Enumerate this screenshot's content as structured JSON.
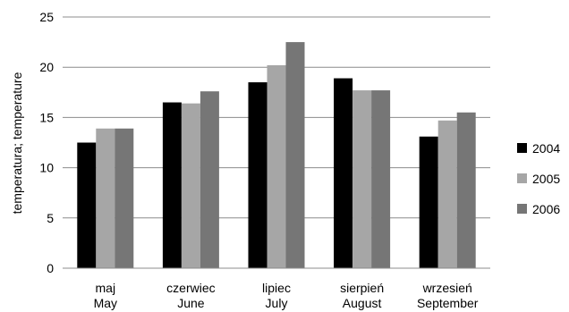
{
  "chart_data": {
    "type": "bar",
    "ylabel": "temperatura; temperature",
    "ylim": [
      0,
      25
    ],
    "yticks": [
      0,
      5,
      10,
      15,
      20,
      25
    ],
    "grid": true,
    "legend_position": "right",
    "categories": [
      {
        "line1": "maj",
        "line2": "May"
      },
      {
        "line1": "czerwiec",
        "line2": "June"
      },
      {
        "line1": "lipiec",
        "line2": "July"
      },
      {
        "line1": "sierpień",
        "line2": "August"
      },
      {
        "line1": "wrzesień",
        "line2": "September"
      }
    ],
    "series": [
      {
        "name": "2004",
        "color": "#000000",
        "values": [
          12.5,
          16.5,
          18.5,
          18.9,
          13.1
        ]
      },
      {
        "name": "2005",
        "color": "#a6a6a6",
        "values": [
          13.9,
          16.4,
          20.2,
          17.7,
          14.7
        ]
      },
      {
        "name": "2006",
        "color": "#767676",
        "values": [
          13.9,
          17.6,
          22.5,
          17.7,
          15.5
        ]
      }
    ]
  }
}
